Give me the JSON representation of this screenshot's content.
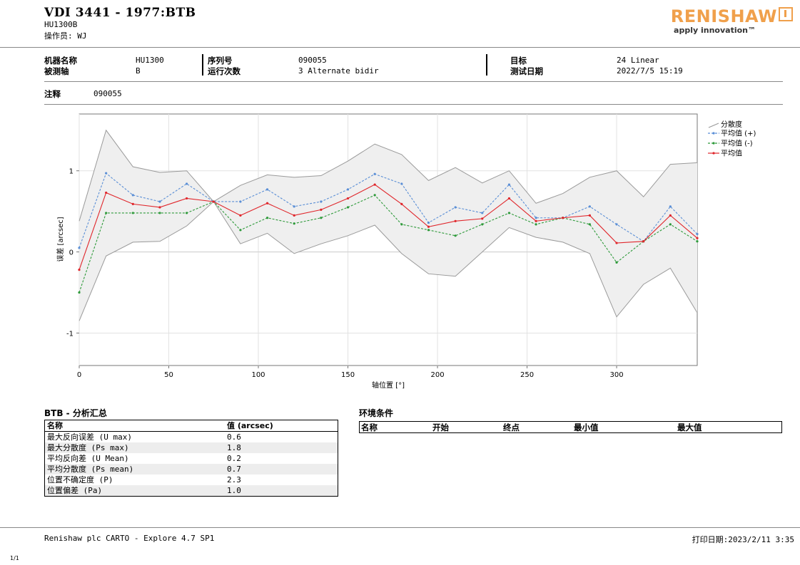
{
  "header": {
    "title": "VDI 3441 - 1977:BTB",
    "machine_code": "HU1300B",
    "operator": "操作员: WJ",
    "logo_name": "RENISHAW",
    "logo_tagline": "apply innovation™"
  },
  "info": {
    "machine_name_label": "机器名称",
    "machine_name": "HU1300",
    "axis_label": "被测轴",
    "axis": "B",
    "serial_label": "序列号",
    "serial": "090055",
    "runs_label": "运行次数",
    "runs": "3 Alternate bidir",
    "target_label": "目标",
    "target": "24 Linear",
    "date_label": "测试日期",
    "date": "2022/7/5 15:19",
    "note_label": "注释",
    "note": "090055"
  },
  "chart_data": {
    "type": "line",
    "xlabel": "轴位置 [°]",
    "ylabel": "误差 [arcsec]",
    "xlim": [
      0,
      345
    ],
    "ylim": [
      -1.4,
      1.7
    ],
    "xticks": [
      0,
      50,
      100,
      150,
      200,
      250,
      300
    ],
    "yticks": [
      -1,
      0,
      1
    ],
    "legend_position": "top-right",
    "x": [
      0,
      15,
      30,
      45,
      60,
      75,
      90,
      105,
      120,
      135,
      150,
      165,
      180,
      195,
      210,
      225,
      240,
      255,
      270,
      285,
      300,
      315,
      330,
      345
    ],
    "dispersion_upper": [
      0.38,
      1.5,
      1.05,
      0.98,
      1.0,
      0.62,
      0.82,
      0.95,
      0.92,
      0.94,
      1.12,
      1.33,
      1.2,
      0.88,
      1.04,
      0.85,
      1.0,
      0.6,
      0.72,
      0.92,
      1.0,
      0.68,
      1.08,
      1.1
    ],
    "dispersion_lower": [
      -0.85,
      -0.05,
      0.12,
      0.13,
      0.32,
      0.62,
      0.1,
      0.23,
      -0.02,
      0.1,
      0.2,
      0.33,
      -0.02,
      -0.27,
      -0.3,
      0.0,
      0.3,
      0.18,
      0.12,
      -0.02,
      -0.8,
      -0.4,
      -0.2,
      -0.75
    ],
    "series": [
      {
        "name": "平均值 (+)",
        "color": "#5b8fd6",
        "values": [
          0.05,
          0.97,
          0.7,
          0.62,
          0.84,
          0.62,
          0.62,
          0.77,
          0.56,
          0.62,
          0.77,
          0.96,
          0.84,
          0.36,
          0.55,
          0.48,
          0.83,
          0.42,
          0.42,
          0.56,
          0.34,
          0.13,
          0.56,
          0.22
        ]
      },
      {
        "name": "平均值 (-)",
        "color": "#2e9a3a",
        "values": [
          -0.5,
          0.48,
          0.48,
          0.48,
          0.48,
          0.62,
          0.27,
          0.42,
          0.35,
          0.42,
          0.55,
          0.7,
          0.34,
          0.27,
          0.2,
          0.34,
          0.48,
          0.34,
          0.42,
          0.34,
          -0.13,
          0.13,
          0.34,
          0.13
        ]
      },
      {
        "name": "平均值",
        "color": "#e0262b",
        "values": [
          -0.22,
          0.73,
          0.59,
          0.55,
          0.66,
          0.62,
          0.45,
          0.6,
          0.45,
          0.52,
          0.66,
          0.83,
          0.59,
          0.31,
          0.38,
          0.41,
          0.66,
          0.38,
          0.42,
          0.45,
          0.11,
          0.13,
          0.45,
          0.17
        ]
      }
    ],
    "dispersion_name": "分散度",
    "dispersion_fill": "#efefef",
    "dispersion_stroke": "#9a9a9a"
  },
  "summary": {
    "title": "BTB - 分析汇总",
    "col_name": "名称",
    "col_value": "值 (arcsec)",
    "rows": [
      {
        "name": "最大反向误差 (U max)",
        "value": "0.6"
      },
      {
        "name": "最大分散度 (Ps max)",
        "value": "1.8"
      },
      {
        "name": "平均反向差 (U Mean)",
        "value": "0.2"
      },
      {
        "name": "平均分散度 (Ps mean)",
        "value": "0.7"
      },
      {
        "name": "位置不确定度 (P)",
        "value": "2.3"
      },
      {
        "name": "位置偏差 (Pa)",
        "value": "1.0"
      }
    ]
  },
  "environment": {
    "title": "环境条件",
    "col_name": "名称",
    "col_start": "开始",
    "col_end": "终点",
    "col_min": "最小值",
    "col_max": "最大值"
  },
  "footer": {
    "software": "Renishaw plc CARTO - Explore 4.7 SP1",
    "print_date": "打印日期:2023/2/11 3:35",
    "page": "1/1"
  }
}
